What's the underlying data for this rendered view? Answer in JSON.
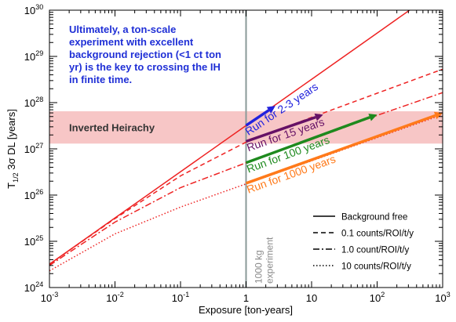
{
  "chart_data": {
    "type": "line",
    "xlabel": "Exposure [ton-years]",
    "ylabel": "T",
    "ylabel_sub": "1/2",
    "ylabel_rest": " 3σ DL [years]",
    "xscale": "log",
    "yscale": "log",
    "xlim": [
      0.001,
      1000
    ],
    "ylim": [
      1e+24,
      1e+30
    ],
    "x_ticks": [
      {
        "v": 0.001,
        "base": "10",
        "exp": "-3"
      },
      {
        "v": 0.01,
        "base": "10",
        "exp": "-2"
      },
      {
        "v": 0.1,
        "base": "10",
        "exp": "-1"
      },
      {
        "v": 1,
        "base": "1",
        "exp": ""
      },
      {
        "v": 10,
        "base": "10",
        "exp": ""
      },
      {
        "v": 100,
        "base": "10",
        "exp": "2"
      },
      {
        "v": 1000,
        "base": "10",
        "exp": "3"
      }
    ],
    "y_ticks": [
      {
        "v": 1e+24,
        "base": "10",
        "exp": "24"
      },
      {
        "v": 1e+25,
        "base": "10",
        "exp": "25"
      },
      {
        "v": 1e+26,
        "base": "10",
        "exp": "26"
      },
      {
        "v": 1e+27,
        "base": "10",
        "exp": "27"
      },
      {
        "v": 1e+28,
        "base": "10",
        "exp": "28"
      },
      {
        "v": 1e+29,
        "base": "10",
        "exp": "29"
      },
      {
        "v": 1e+30,
        "base": "10",
        "exp": "30"
      }
    ],
    "band": {
      "label": "Inverted Heirachy",
      "y_low": 1.3e+27,
      "y_high": 6.5e+27,
      "color": "#f7c6c6"
    },
    "vline": {
      "x": 1,
      "label_line1": "1000 kg",
      "label_line2": "experiment",
      "color": "#8a9a98"
    },
    "series": [
      {
        "name": "Background free",
        "dash": "solid",
        "x": [
          0.001,
          1,
          10,
          100,
          1000
        ],
        "y": [
          3.2e+24,
          3.2e+27,
          3.2e+28,
          3.2e+29,
          3.2e+30
        ]
      },
      {
        "name": "0.1 counts/ROI/t/y",
        "dash": "dashed",
        "x": [
          0.001,
          0.01,
          0.1,
          1,
          10,
          100,
          1000
        ],
        "y": [
          3.2e+24,
          3.1e+25,
          2.6e+26,
          1.4e+27,
          4.8e+27,
          1.6e+28,
          5.3e+28
        ]
      },
      {
        "name": "1.0 count/ROI/t/y",
        "dash": "dashdot",
        "x": [
          0.001,
          0.01,
          0.1,
          1,
          10,
          100,
          1000
        ],
        "y": [
          3e+24,
          2.6e+25,
          1.45e+26,
          5e+26,
          1.6e+27,
          5.3e+27,
          1.65e+28
        ]
      },
      {
        "name": "10 counts/ROI/t/y",
        "dash": "dotted",
        "x": [
          0.001,
          0.01,
          0.1,
          1,
          10,
          100,
          1000
        ],
        "y": [
          2.3e+24,
          1.45e+25,
          5.5e+25,
          1.75e+26,
          5.5e+26,
          1.75e+27,
          5.5e+27
        ]
      }
    ],
    "arrows": [
      {
        "label": "Run for 2-3 years",
        "color": "#2222dd",
        "x0": 1,
        "y0": 3.2e+27,
        "x1": 2.8,
        "y1": 8.5e+27
      },
      {
        "label": "Run for 15 years",
        "color": "#661166",
        "x0": 1,
        "y0": 1.45e+27,
        "x1": 15,
        "y1": 5.5e+27
      },
      {
        "label": "Run for 100 years",
        "color": "#1e8a1e",
        "x0": 1,
        "y0": 5e+26,
        "x1": 100,
        "y1": 5.5e+27
      },
      {
        "label": "Run for 1000 years",
        "color": "#ff7a1a",
        "x0": 1,
        "y0": 1.8e+26,
        "x1": 1000,
        "y1": 6e+27
      }
    ],
    "annotation": {
      "lines": [
        "Ultimately, a ton-scale",
        "experiment with excellent",
        "background rejection (<1 ct ton",
        "yr) is the key to crossing the IH",
        "in finite time."
      ],
      "color": "#1f2fd6"
    },
    "legend_position": "lower-right",
    "grid": false,
    "line_color": "#ee2222"
  }
}
